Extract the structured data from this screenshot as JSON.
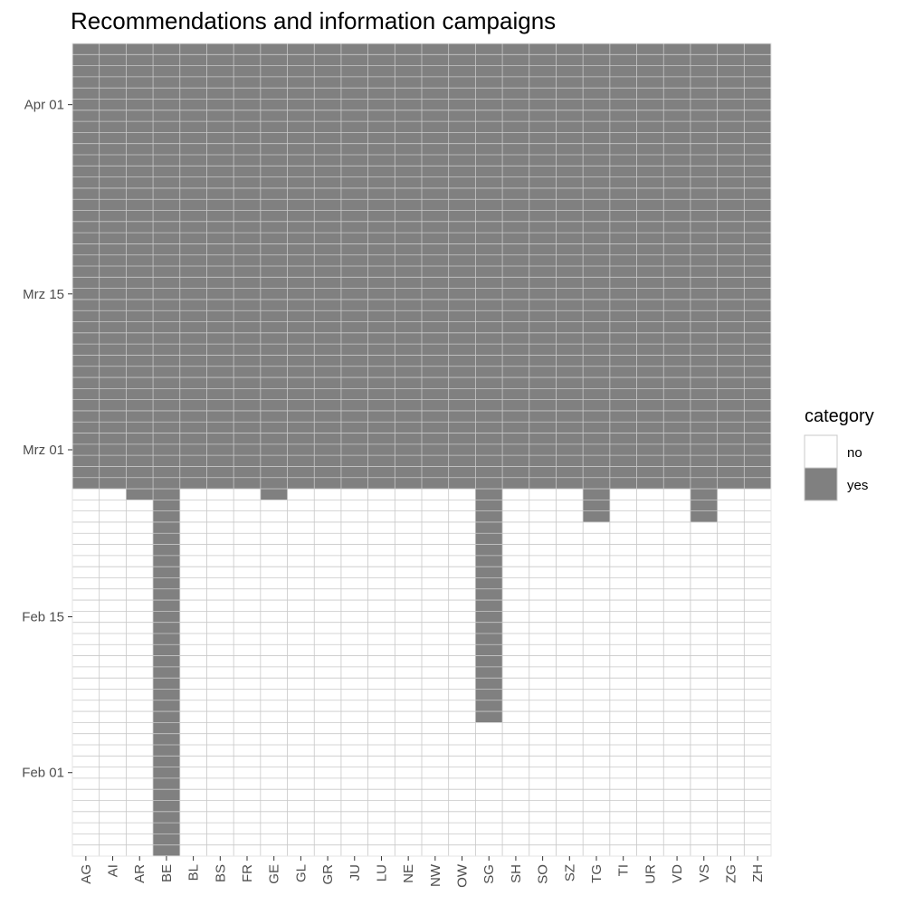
{
  "chart_data": {
    "type": "heatmap",
    "title": "Recommendations and information campaigns",
    "xlabel": "",
    "ylabel": "",
    "y_date_start": "2020-01-25",
    "y_date_end": "2020-04-06",
    "categories": [
      "AG",
      "AI",
      "AR",
      "BE",
      "BL",
      "BS",
      "FR",
      "GE",
      "GL",
      "GR",
      "JU",
      "LU",
      "NE",
      "NW",
      "OW",
      "SG",
      "SH",
      "SO",
      "SZ",
      "TG",
      "TI",
      "UR",
      "VD",
      "VS",
      "ZG",
      "ZH"
    ],
    "y_ticks": [
      {
        "date": "2020-02-01",
        "label": "Feb 01"
      },
      {
        "date": "2020-02-15",
        "label": "Feb 15"
      },
      {
        "date": "2020-03-01",
        "label": "Mrz 01"
      },
      {
        "date": "2020-03-15",
        "label": "Mrz 15"
      },
      {
        "date": "2020-04-01",
        "label": "Apr 01"
      }
    ],
    "yes_start_date": {
      "AG": "2020-02-27",
      "AI": "2020-02-27",
      "AR": "2020-02-26",
      "BE": "2020-01-25",
      "BL": "2020-02-27",
      "BS": "2020-02-27",
      "FR": "2020-02-27",
      "GE": "2020-02-26",
      "GL": "2020-02-27",
      "GR": "2020-02-27",
      "JU": "2020-02-27",
      "LU": "2020-02-27",
      "NE": "2020-02-27",
      "NW": "2020-02-27",
      "OW": "2020-02-27",
      "SG": "2020-02-06",
      "SH": "2020-02-27",
      "SO": "2020-02-27",
      "SZ": "2020-02-27",
      "TG": "2020-02-24",
      "TI": "2020-02-27",
      "UR": "2020-02-27",
      "VD": "2020-02-27",
      "VS": "2020-02-24",
      "ZG": "2020-02-27",
      "ZH": "2020-02-27"
    },
    "legend": {
      "title": "category",
      "position": "right",
      "items": [
        {
          "label": "no",
          "color": "#ffffff"
        },
        {
          "label": "yes",
          "color": "#808080"
        }
      ]
    },
    "colors": {
      "no": "#ffffff",
      "yes": "#808080",
      "grid": "#c8c8c8",
      "panel_border": "#e6e6e6"
    }
  }
}
